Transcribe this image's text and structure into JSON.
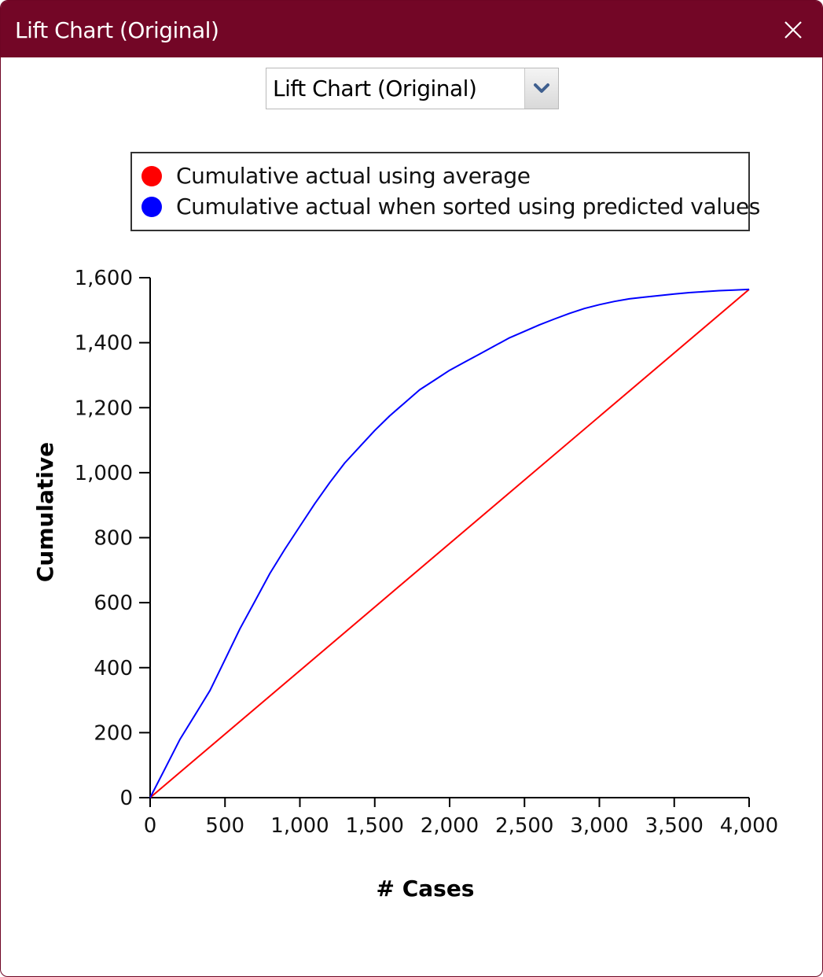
{
  "window": {
    "title": "Lift Chart (Original)",
    "titlebar_color": "#730626"
  },
  "selector": {
    "value": "Lift Chart (Original)"
  },
  "legend": {
    "items": [
      {
        "label": "Cumulative actual using average",
        "color": "#ff0000"
      },
      {
        "label": "Cumulative actual when sorted using predicted values",
        "color": "#0000ff"
      }
    ]
  },
  "chart_data": {
    "type": "line",
    "xlabel": "# Cases",
    "ylabel": "Cumulative",
    "xlim": [
      0,
      4000
    ],
    "ylim": [
      0,
      1600
    ],
    "x_ticks": [
      0,
      500,
      1000,
      1500,
      2000,
      2500,
      3000,
      3500,
      4000
    ],
    "x_tick_labels": [
      "0",
      "500",
      "1,000",
      "1,500",
      "2,000",
      "2,500",
      "3,000",
      "3,500",
      "4,000"
    ],
    "y_ticks": [
      0,
      200,
      400,
      600,
      800,
      1000,
      1200,
      1400,
      1600
    ],
    "y_tick_labels": [
      "0",
      "200",
      "400",
      "600",
      "800",
      "1,000",
      "1,200",
      "1,400",
      "1,600"
    ],
    "grid": false,
    "legend_position": "top",
    "series": [
      {
        "name": "Cumulative actual using average",
        "color": "#ff0000",
        "x": [
          0,
          4000
        ],
        "y": [
          0,
          1564
        ]
      },
      {
        "name": "Cumulative actual when sorted using predicted values",
        "color": "#0000ff",
        "x": [
          0,
          100,
          200,
          300,
          400,
          500,
          600,
          700,
          800,
          900,
          1000,
          1100,
          1200,
          1300,
          1400,
          1500,
          1600,
          1700,
          1800,
          1900,
          2000,
          2100,
          2200,
          2300,
          2400,
          2500,
          2600,
          2700,
          2800,
          2900,
          3000,
          3100,
          3200,
          3300,
          3400,
          3500,
          3600,
          3700,
          3800,
          3900,
          4000
        ],
        "y": [
          0,
          90,
          180,
          255,
          330,
          425,
          520,
          605,
          690,
          765,
          835,
          905,
          970,
          1030,
          1080,
          1130,
          1175,
          1215,
          1255,
          1285,
          1315,
          1340,
          1365,
          1390,
          1415,
          1435,
          1455,
          1473,
          1490,
          1505,
          1517,
          1527,
          1535,
          1540,
          1545,
          1550,
          1554,
          1557,
          1560,
          1562,
          1564
        ]
      }
    ]
  }
}
